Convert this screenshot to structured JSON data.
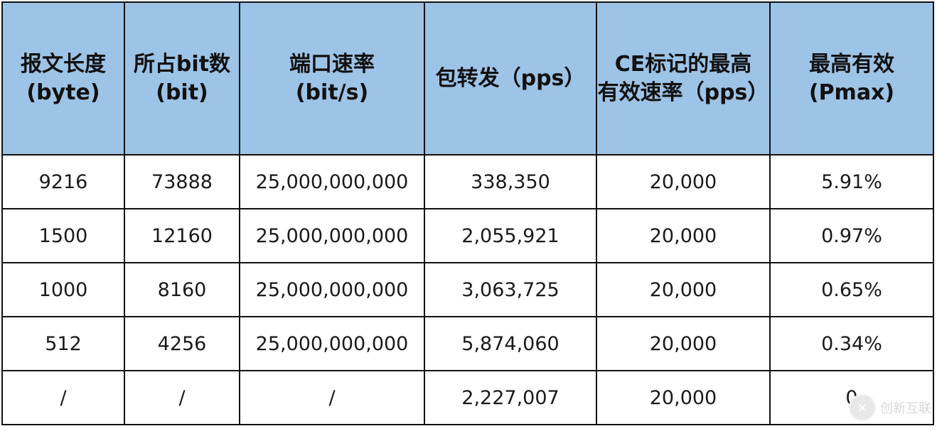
{
  "table": {
    "headers": [
      [
        "报文长度",
        "(byte)"
      ],
      [
        "所占bit数",
        "(bit)"
      ],
      [
        "端口速率",
        "(bit/s)"
      ],
      [
        "包转发（pps）"
      ],
      [
        "CE标记的最高",
        "有效速率（pps）"
      ],
      [
        "最高有效",
        "(Pmax)"
      ]
    ],
    "rows": [
      [
        "9216",
        "73888",
        "25,000,000,000",
        "338,350",
        "20,000",
        "5.91%"
      ],
      [
        "1500",
        "12160",
        "25,000,000,000",
        "2,055,921",
        "20,000",
        "0.97%"
      ],
      [
        "1000",
        "8160",
        "25,000,000,000",
        "3,063,725",
        "20,000",
        "0.65%"
      ],
      [
        "512",
        "4256",
        "25,000,000,000",
        "5,874,060",
        "20,000",
        "0.34%"
      ],
      [
        "/",
        "/",
        "/",
        "2,227,007",
        "20,000",
        "0"
      ]
    ]
  },
  "watermark": {
    "text": "创新互联",
    "icon": "brand-logo-icon"
  },
  "colors": {
    "header_bg": "#9dc3e6",
    "border": "#111111"
  }
}
